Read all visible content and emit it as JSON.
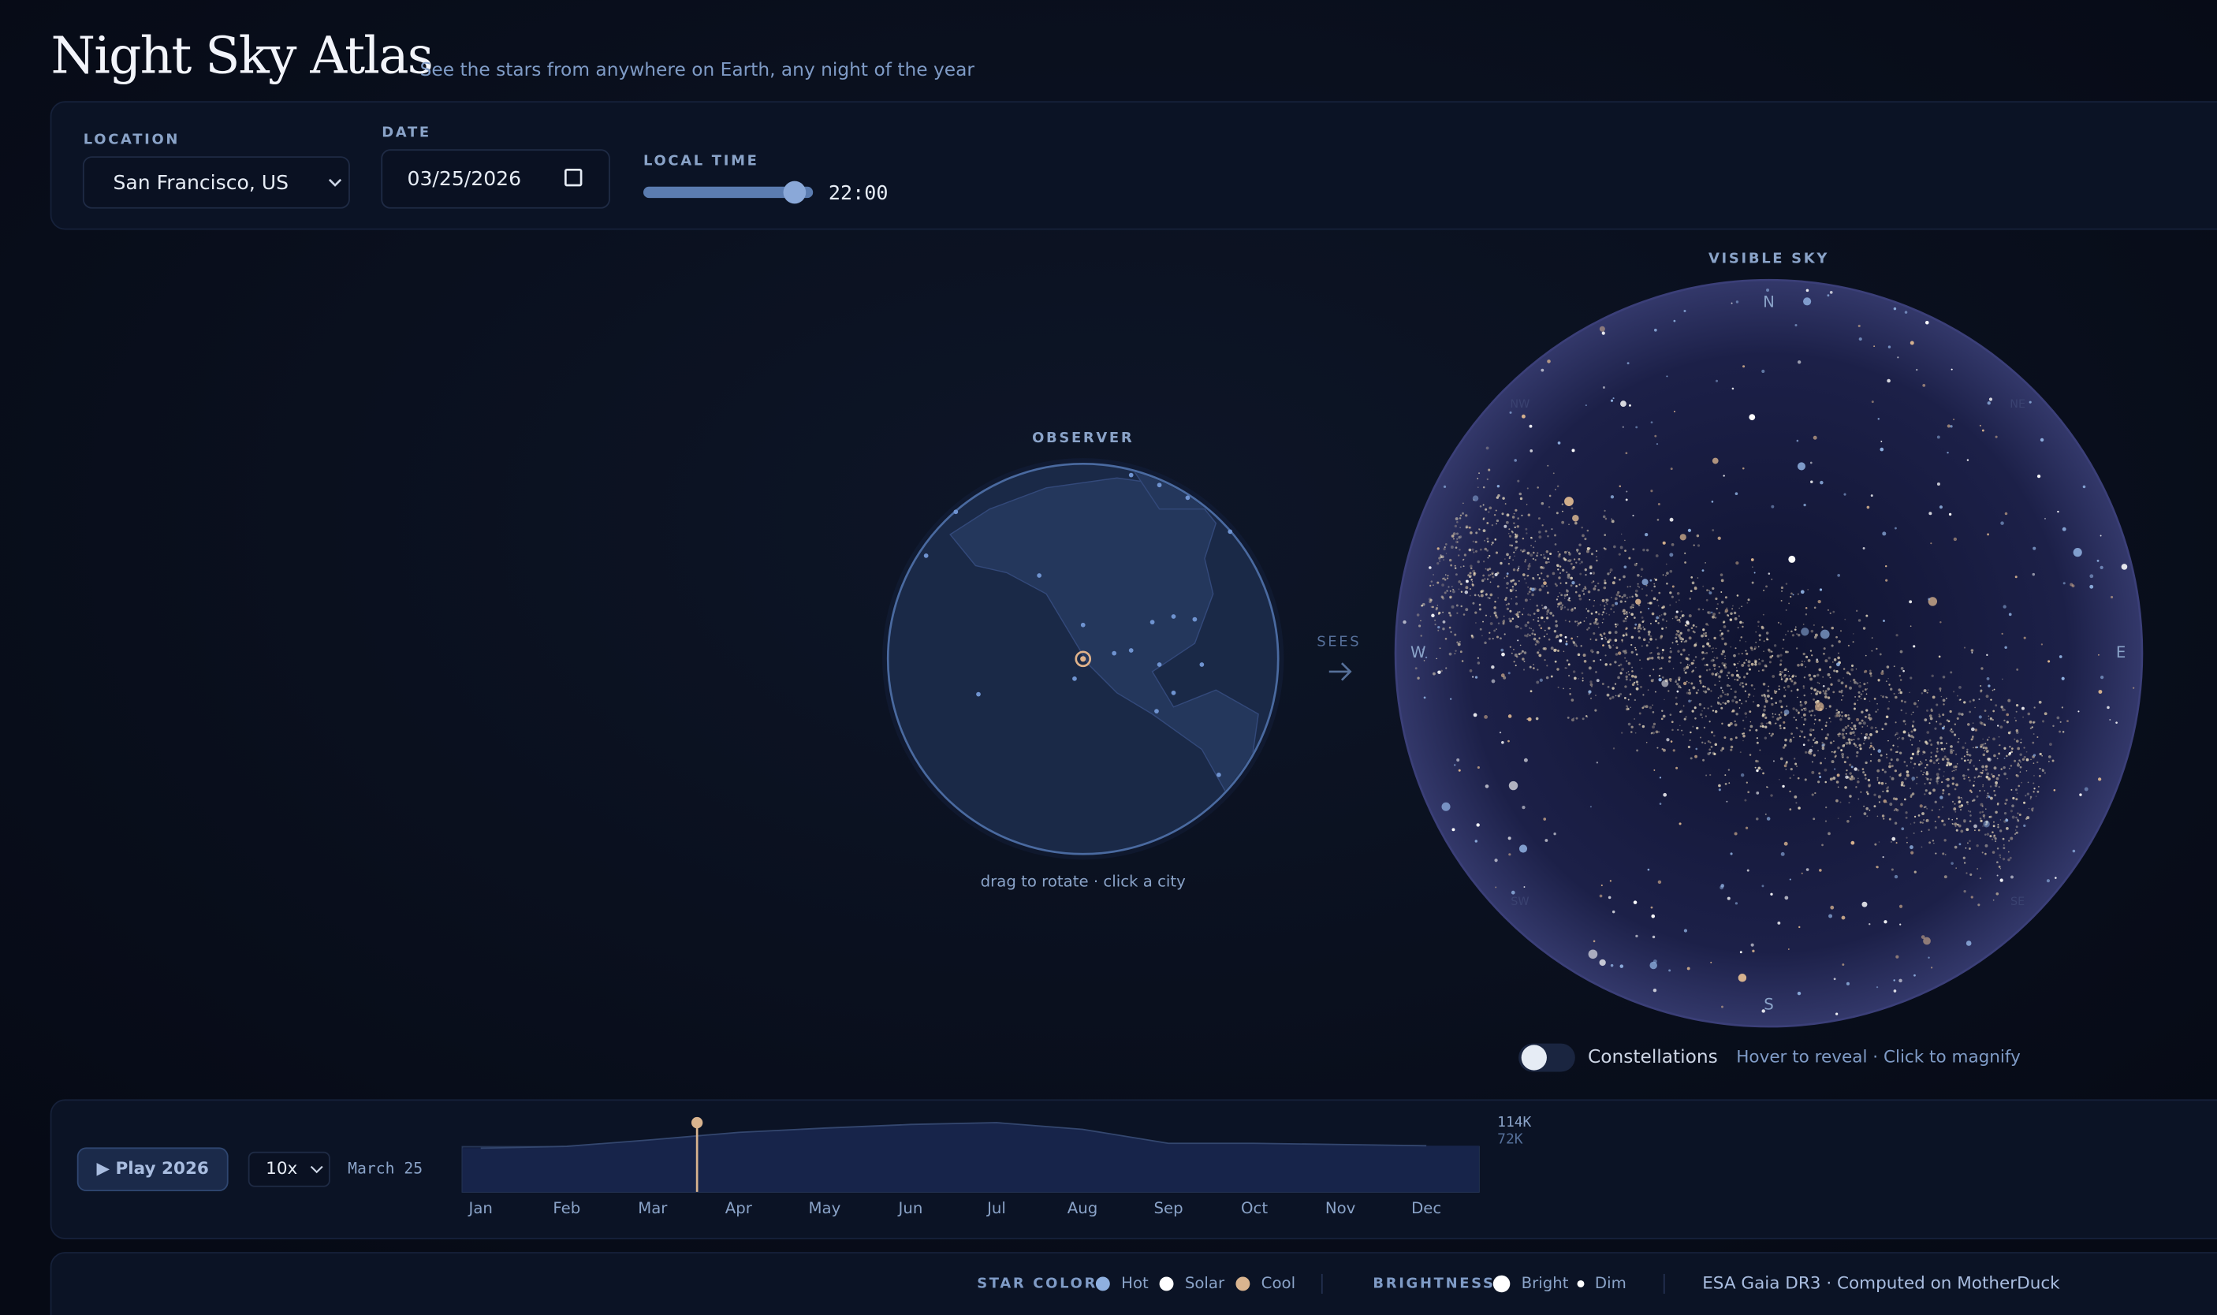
{
  "header": {
    "title": "Night Sky Atlas",
    "subtitle": "See the stars from anywhere on Earth, any night of the year"
  },
  "controls": {
    "location_label": "LOCATION",
    "location": "San Francisco, US",
    "date_label": "DATE",
    "date": "03/25/2026",
    "time_label": "LOCAL TIME",
    "time": "22:00"
  },
  "observer": {
    "label": "OBSERVER",
    "caption": "drag to rotate · click a city",
    "sees": "SEES"
  },
  "sky": {
    "label": "VISIBLE SKY",
    "compass": {
      "n": "N",
      "e": "E",
      "s": "S",
      "w": "W",
      "nw": "NW",
      "ne": "NE",
      "sw": "SW",
      "se": "SE"
    }
  },
  "constellations": {
    "label": "Constellations",
    "hint": "Hover to reveal · Click to magnify"
  },
  "timeline": {
    "play": "▶ Play 2026",
    "speed": "10x",
    "date": "March 25",
    "categories": [
      "Jan",
      "Feb",
      "Mar",
      "Apr",
      "May",
      "Jun",
      "Jul",
      "Aug",
      "Sep",
      "Oct",
      "Nov",
      "Dec"
    ],
    "values": [
      72,
      75,
      86,
      98,
      105,
      111,
      114,
      103,
      80,
      80,
      78,
      76
    ],
    "ylim": [
      0,
      114
    ],
    "max_label": "114K",
    "min_label": "72K"
  },
  "legend": {
    "star_color": "STAR COLOR",
    "hot": "Hot",
    "hot_color": "#8fb0e0",
    "solar": "Solar",
    "solar_color": "#ffffff",
    "cool": "Cool",
    "cool_color": "#d9b48f",
    "brightness": "BRIGHTNESS",
    "bright": "Bright",
    "dim": "Dim",
    "source": "ESA Gaia DR3 · Computed on MotherDuck"
  }
}
